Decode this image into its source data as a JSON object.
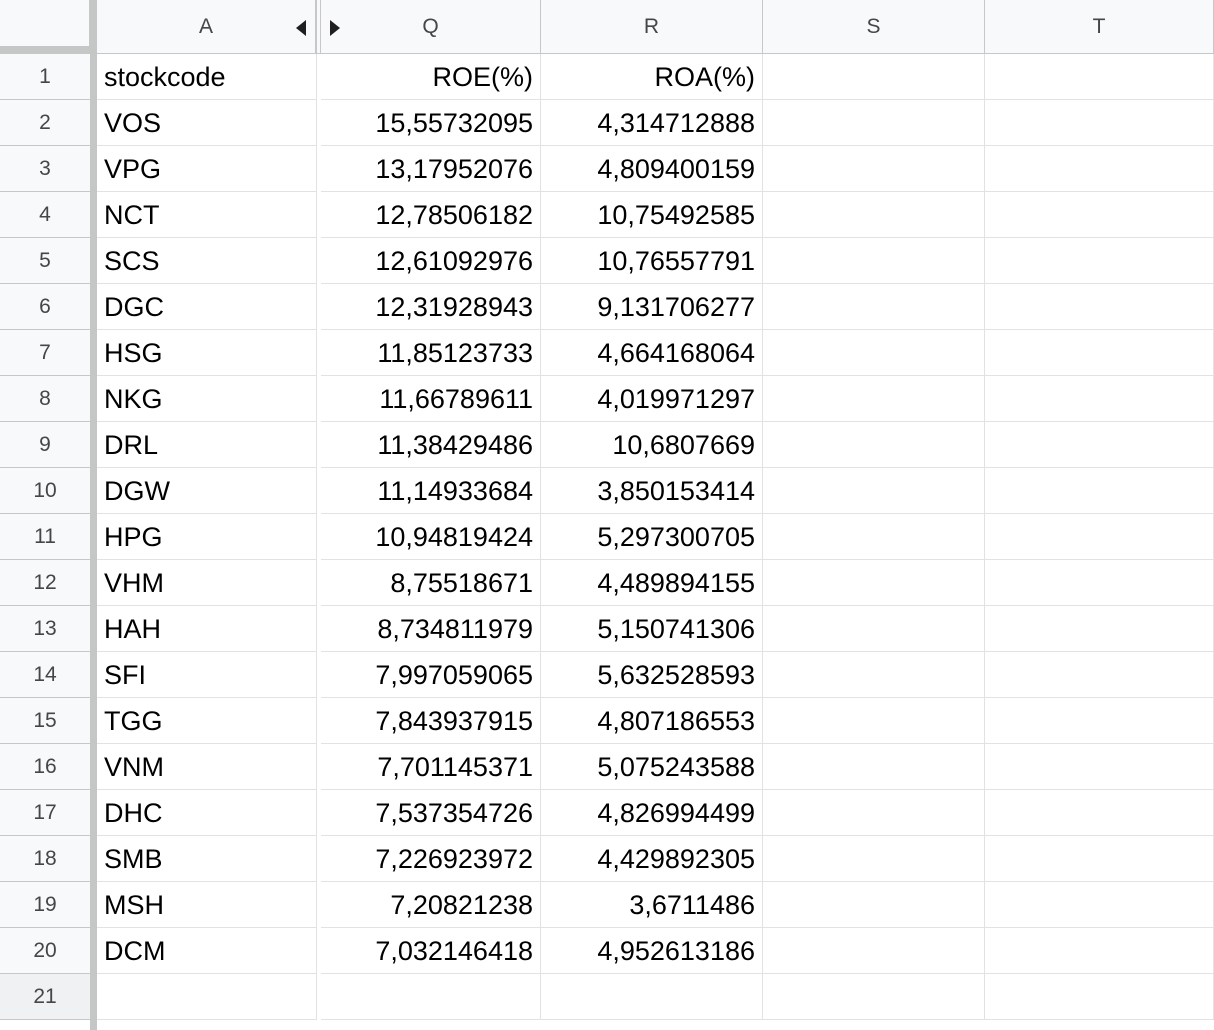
{
  "columns": [
    {
      "key": "A",
      "label": "A"
    },
    {
      "key": "Q",
      "label": "Q"
    },
    {
      "key": "R",
      "label": "R"
    },
    {
      "key": "S",
      "label": "S"
    },
    {
      "key": "T",
      "label": "T"
    }
  ],
  "row_numbers": [
    "1",
    "2",
    "3",
    "4",
    "5",
    "6",
    "7",
    "8",
    "9",
    "10",
    "11",
    "12",
    "13",
    "14",
    "15",
    "16",
    "17",
    "18",
    "19",
    "20",
    "21"
  ],
  "headers": {
    "a": "stockcode",
    "q": "ROE(%)",
    "r": "ROA(%)"
  },
  "rows": [
    {
      "code": "VOS",
      "roe": "15,55732095",
      "roa": "4,314712888"
    },
    {
      "code": "VPG",
      "roe": "13,17952076",
      "roa": "4,809400159"
    },
    {
      "code": "NCT",
      "roe": "12,78506182",
      "roa": "10,75492585"
    },
    {
      "code": "SCS",
      "roe": "12,61092976",
      "roa": "10,76557791"
    },
    {
      "code": "DGC",
      "roe": "12,31928943",
      "roa": "9,131706277"
    },
    {
      "code": "HSG",
      "roe": "11,85123733",
      "roa": "4,664168064"
    },
    {
      "code": "NKG",
      "roe": "11,66789611",
      "roa": "4,019971297"
    },
    {
      "code": "DRL",
      "roe": "11,38429486",
      "roa": "10,6807669"
    },
    {
      "code": "DGW",
      "roe": "11,14933684",
      "roa": "3,850153414"
    },
    {
      "code": "HPG",
      "roe": "10,94819424",
      "roa": "5,297300705"
    },
    {
      "code": "VHM",
      "roe": "8,75518671",
      "roa": "4,489894155"
    },
    {
      "code": "HAH",
      "roe": "8,734811979",
      "roa": "5,150741306"
    },
    {
      "code": "SFI",
      "roe": "7,997059065",
      "roa": "5,632528593"
    },
    {
      "code": "TGG",
      "roe": "7,843937915",
      "roa": "4,807186553"
    },
    {
      "code": "VNM",
      "roe": "7,701145371",
      "roa": "5,075243588"
    },
    {
      "code": "DHC",
      "roe": "7,537354726",
      "roa": "4,826994499"
    },
    {
      "code": "SMB",
      "roe": "7,226923972",
      "roa": "4,429892305"
    },
    {
      "code": "MSH",
      "roe": "7,20821238",
      "roa": "3,6711486"
    },
    {
      "code": "DCM",
      "roe": "7,032146418",
      "roa": "4,952613186"
    }
  ]
}
